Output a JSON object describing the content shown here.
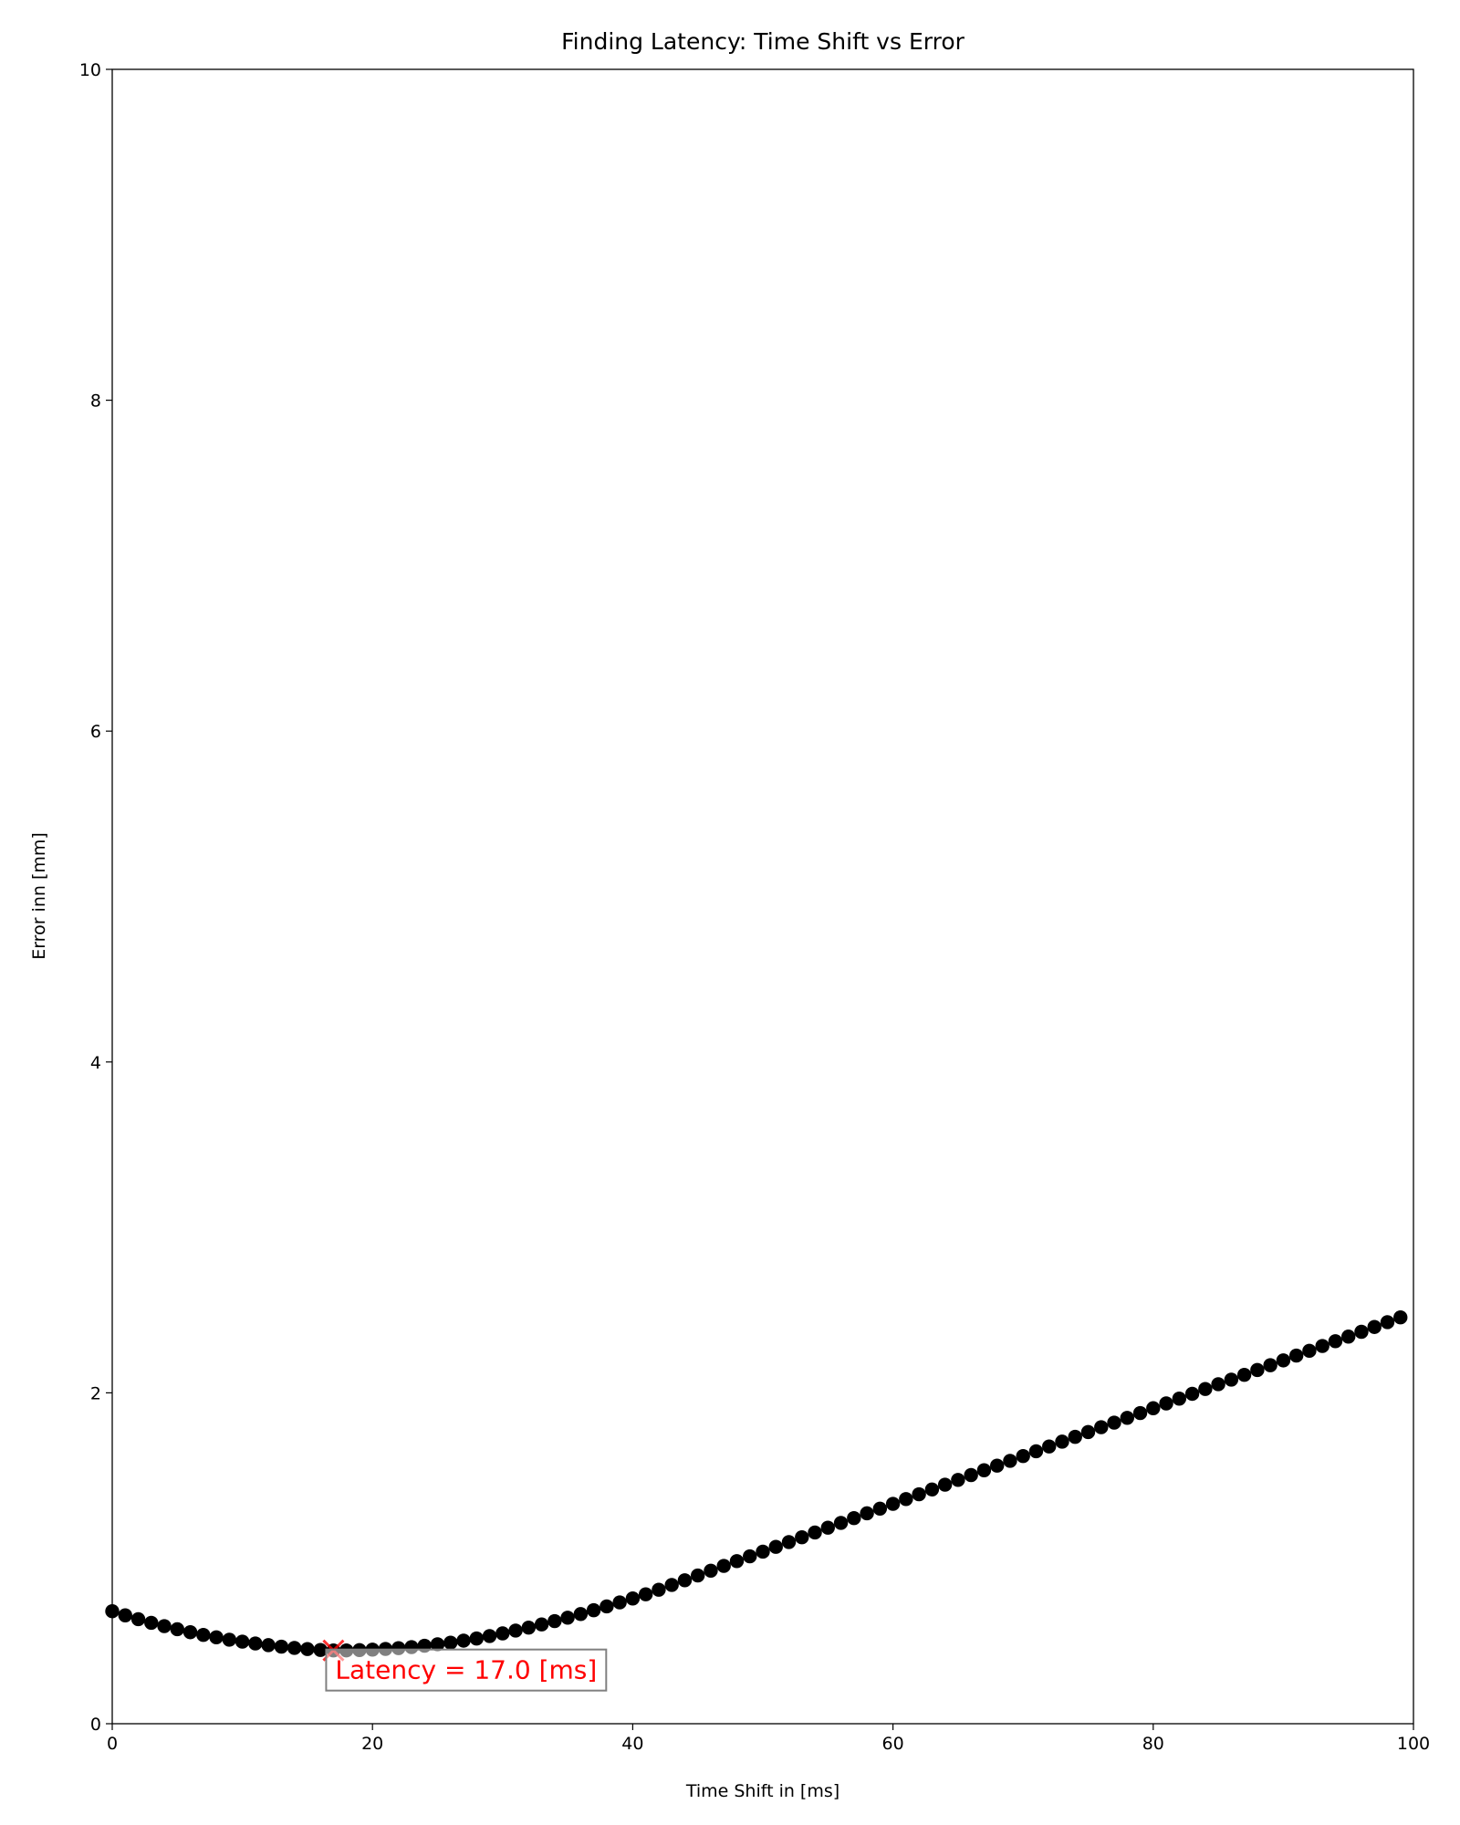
{
  "chart_data": {
    "type": "scatter",
    "title": "Finding Latency: Time Shift vs Error",
    "xlabel": "Time Shift in [ms]",
    "ylabel": "Error inn [mm]",
    "x": [
      0,
      1,
      2,
      3,
      4,
      5,
      6,
      7,
      8,
      9,
      10,
      11,
      12,
      13,
      14,
      15,
      16,
      17,
      18,
      19,
      20,
      21,
      22,
      23,
      24,
      25,
      26,
      27,
      28,
      29,
      30,
      31,
      32,
      33,
      34,
      35,
      36,
      37,
      38,
      39,
      40,
      41,
      42,
      43,
      44,
      45,
      46,
      47,
      48,
      49,
      50,
      51,
      52,
      53,
      54,
      55,
      56,
      57,
      58,
      59,
      60,
      61,
      62,
      63,
      64,
      65,
      66,
      67,
      68,
      69,
      70,
      71,
      72,
      73,
      74,
      75,
      76,
      77,
      78,
      79,
      80,
      81,
      82,
      83,
      84,
      85,
      86,
      87,
      88,
      89,
      90,
      91,
      92,
      93,
      94,
      95,
      96,
      97,
      98,
      99
    ],
    "values": [
      0.68,
      0.655,
      0.632,
      0.61,
      0.59,
      0.571,
      0.553,
      0.537,
      0.522,
      0.508,
      0.496,
      0.485,
      0.475,
      0.466,
      0.458,
      0.451,
      0.446,
      0.443,
      0.443,
      0.445,
      0.448,
      0.452,
      0.457,
      0.463,
      0.471,
      0.48,
      0.49,
      0.502,
      0.515,
      0.53,
      0.546,
      0.563,
      0.581,
      0.6,
      0.62,
      0.641,
      0.663,
      0.686,
      0.709,
      0.733,
      0.757,
      0.782,
      0.81,
      0.839,
      0.867,
      0.896,
      0.925,
      0.954,
      0.983,
      1.012,
      1.04,
      1.069,
      1.098,
      1.127,
      1.156,
      1.185,
      1.214,
      1.243,
      1.272,
      1.3,
      1.329,
      1.358,
      1.387,
      1.416,
      1.445,
      1.474,
      1.503,
      1.532,
      1.56,
      1.589,
      1.618,
      1.647,
      1.676,
      1.705,
      1.734,
      1.763,
      1.792,
      1.82,
      1.849,
      1.878,
      1.907,
      1.936,
      1.965,
      1.994,
      2.023,
      2.052,
      2.08,
      2.109,
      2.138,
      2.167,
      2.196,
      2.225,
      2.254,
      2.283,
      2.312,
      2.34,
      2.369,
      2.398,
      2.427,
      2.456
    ],
    "color": "#000000",
    "xlim": [
      0,
      100
    ],
    "xticks": [
      0,
      20,
      40,
      60,
      80,
      100
    ],
    "ylim": [
      0,
      10
    ],
    "yticks": [
      0,
      2,
      4,
      6,
      8,
      10
    ],
    "grid": false,
    "marker": {
      "x": 17,
      "y": 0.443,
      "color": "#ff0000"
    },
    "annotation": "Latency = 17.0 [ms]"
  }
}
